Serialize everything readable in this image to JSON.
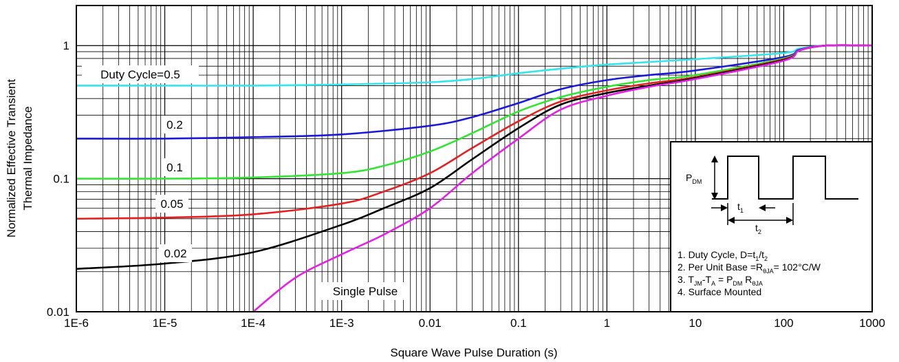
{
  "chart_data": {
    "type": "line",
    "xlabel": "Square Wave Pulse Duration (s)",
    "ylabel": [
      "Normalized Effective Transient",
      "Thermal Impedance"
    ],
    "xscale": "log",
    "yscale": "log",
    "xlim": [
      1e-06,
      1000
    ],
    "ylim": [
      0.01,
      2
    ],
    "grid": true,
    "x_tick_labels": [
      "1E-6",
      "1E-5",
      "1E-4",
      "1E-3",
      "0.01",
      "0.1",
      "1",
      "10",
      "100",
      "1000"
    ],
    "y_tick_labels": [
      "0.01",
      "0.1",
      "1"
    ],
    "series": [
      {
        "name": "Duty Cycle=0.5",
        "color": "#33e5ee",
        "x": [
          1e-06,
          1e-05,
          0.0001,
          0.001,
          0.01,
          0.03,
          0.1,
          0.3,
          1,
          10,
          100,
          150,
          300,
          1000
        ],
        "y": [
          0.5,
          0.5,
          0.5,
          0.51,
          0.53,
          0.56,
          0.62,
          0.67,
          0.72,
          0.79,
          0.88,
          0.95,
          1.0,
          1.0
        ]
      },
      {
        "name": "0.2",
        "color": "#1a1ad6",
        "x": [
          1e-06,
          1e-05,
          0.0001,
          0.001,
          0.01,
          0.03,
          0.1,
          0.3,
          1,
          3,
          10,
          100,
          150,
          300,
          1000
        ],
        "y": [
          0.2,
          0.2,
          0.205,
          0.215,
          0.25,
          0.29,
          0.37,
          0.47,
          0.55,
          0.6,
          0.65,
          0.82,
          0.93,
          1.0,
          1.0
        ]
      },
      {
        "name": "0.1",
        "color": "#33e533",
        "x": [
          1e-06,
          1e-05,
          0.0001,
          0.001,
          0.003,
          0.01,
          0.03,
          0.1,
          0.3,
          1,
          3,
          10,
          100,
          150,
          300,
          1000
        ],
        "y": [
          0.1,
          0.1,
          0.102,
          0.11,
          0.125,
          0.16,
          0.22,
          0.32,
          0.41,
          0.49,
          0.55,
          0.6,
          0.8,
          0.92,
          1.0,
          1.0
        ]
      },
      {
        "name": "0.05",
        "color": "#e52020",
        "x": [
          1e-06,
          1e-05,
          0.0001,
          0.001,
          0.003,
          0.01,
          0.03,
          0.1,
          0.3,
          1,
          3,
          10,
          100,
          150,
          300,
          1000
        ],
        "y": [
          0.05,
          0.051,
          0.054,
          0.065,
          0.08,
          0.11,
          0.17,
          0.27,
          0.38,
          0.46,
          0.52,
          0.58,
          0.79,
          0.92,
          1.0,
          1.0
        ]
      },
      {
        "name": "0.02",
        "color": "#000000",
        "x": [
          1e-06,
          1e-05,
          0.0001,
          0.001,
          0.003,
          0.01,
          0.03,
          0.1,
          0.3,
          1,
          3,
          10,
          100,
          150,
          300,
          1000
        ],
        "y": [
          0.021,
          0.023,
          0.028,
          0.045,
          0.06,
          0.085,
          0.14,
          0.24,
          0.36,
          0.44,
          0.5,
          0.57,
          0.78,
          0.92,
          1.0,
          1.0
        ]
      },
      {
        "name": "Single Pulse",
        "color": "#e520e5",
        "x": [
          0.0001,
          0.0003,
          0.001,
          0.003,
          0.01,
          0.03,
          0.1,
          0.3,
          1,
          3,
          10,
          100,
          150,
          300,
          1000
        ],
        "y": [
          0.01,
          0.018,
          0.027,
          0.038,
          0.06,
          0.11,
          0.2,
          0.33,
          0.42,
          0.49,
          0.56,
          0.77,
          0.92,
          1.0,
          1.0
        ]
      }
    ],
    "notes": [
      [
        "1. Duty Cycle, D=t",
        "1",
        "/t",
        "2"
      ],
      [
        "2. Per Unit Base =R",
        "θJA",
        "= 102°C/W"
      ],
      [
        "3. T",
        "JM",
        "-T",
        "A",
        " = P",
        "DM",
        " R",
        "θJA"
      ],
      [
        "4. Surface Mounted"
      ]
    ],
    "inset_labels": {
      "p_dm": [
        "P",
        "DM"
      ],
      "t1": [
        "t",
        "1"
      ],
      "t2": [
        "t",
        "2"
      ]
    }
  }
}
